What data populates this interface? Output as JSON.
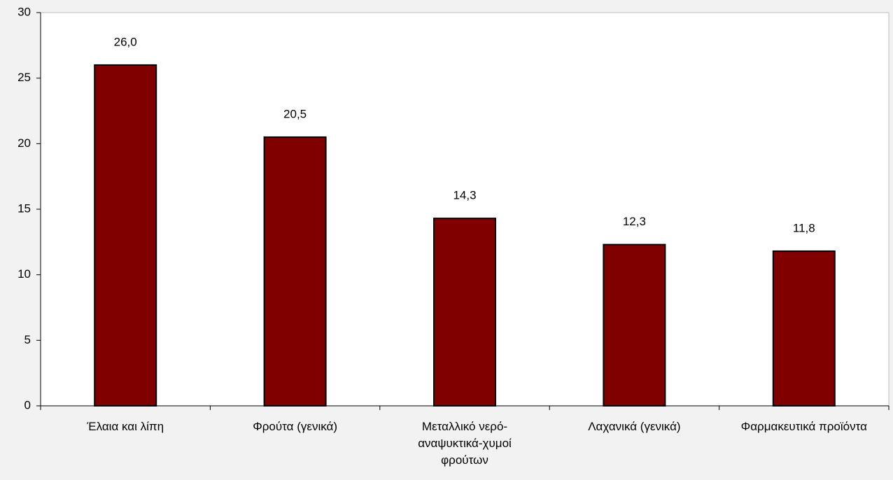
{
  "chart_data": {
    "type": "bar",
    "categories": [
      "Έλαια και λίπη",
      "Φρούτα (γενικά)",
      "Μεταλλικό νερό-αναψυκτικά-χυμοί φρούτων",
      "Λαχανικά (γενικά)",
      "Φαρμακευτικά προϊόντα"
    ],
    "values": [
      26.0,
      20.5,
      14.3,
      12.3,
      11.8
    ],
    "value_labels": [
      "26,0",
      "20,5",
      "14,3",
      "12,3",
      "11,8"
    ],
    "color": "#800000",
    "ylim": [
      0,
      30
    ],
    "yticks": [
      0,
      5,
      10,
      15,
      20,
      25,
      30
    ],
    "grid": false
  }
}
